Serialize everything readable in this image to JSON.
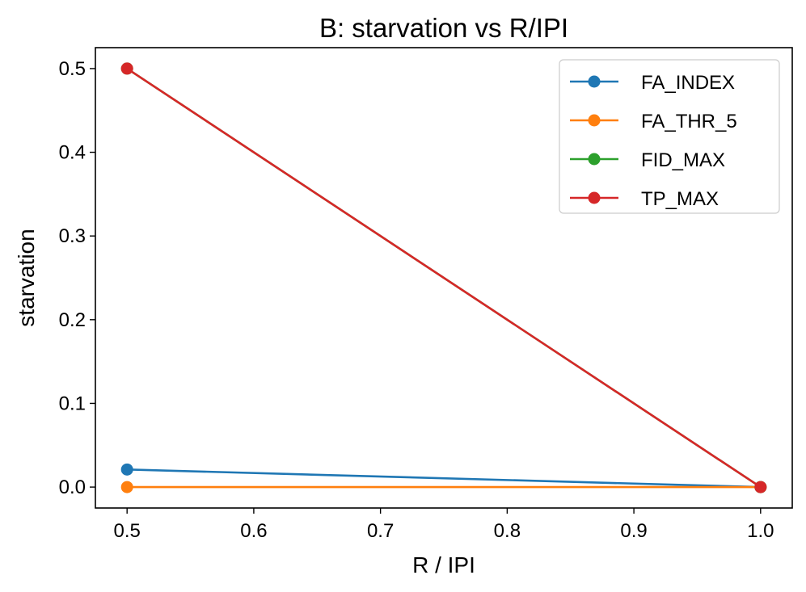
{
  "chart_data": {
    "type": "line",
    "title": "B: starvation vs R/IPI",
    "xlabel": "R / IPI",
    "ylabel": "starvation",
    "x": [
      0.5,
      1.0
    ],
    "xlim": [
      0.475,
      1.025
    ],
    "ylim": [
      -0.025,
      0.525
    ],
    "xticks": [
      0.5,
      0.6,
      0.7,
      0.8,
      0.9,
      1.0
    ],
    "xtick_labels": [
      "0.5",
      "0.6",
      "0.7",
      "0.8",
      "0.9",
      "1.0"
    ],
    "yticks": [
      0.0,
      0.1,
      0.2,
      0.3,
      0.4,
      0.5
    ],
    "ytick_labels": [
      "0.0",
      "0.1",
      "0.2",
      "0.3",
      "0.4",
      "0.5"
    ],
    "grid": false,
    "legend_position": "top-right",
    "series": [
      {
        "name": "FA_INDEX",
        "color": "#1f77b4",
        "values": [
          0.021,
          0.0
        ]
      },
      {
        "name": "FA_THR_5",
        "color": "#ff7f0e",
        "values": [
          0.0,
          0.0
        ]
      },
      {
        "name": "FID_MAX",
        "color": "#2ca02c",
        "values": [
          0.5,
          0.0
        ]
      },
      {
        "name": "TP_MAX",
        "color": "#d62728",
        "values": [
          0.5,
          0.0
        ]
      }
    ]
  }
}
